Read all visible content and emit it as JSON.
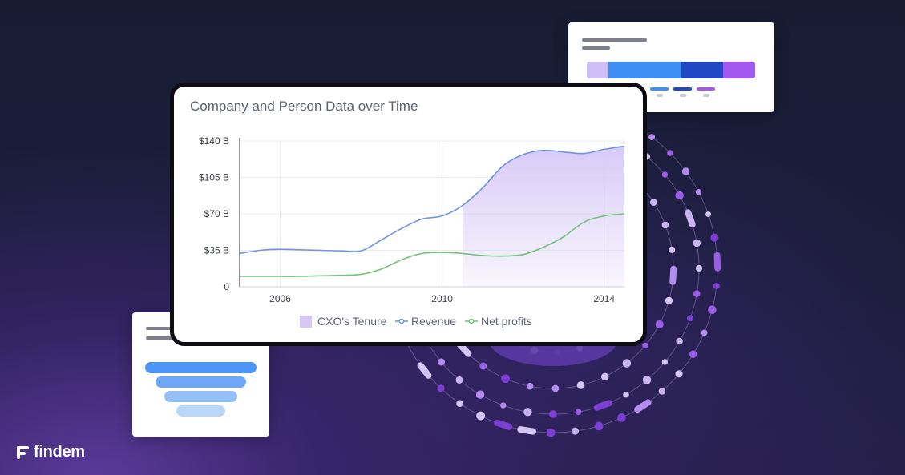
{
  "brand": {
    "name": "findem",
    "logo_icon": "findem-f-icon"
  },
  "colors": {
    "tenure": "#d6c7f7",
    "revenue": "#6f95e2",
    "net_profits": "#74c17b",
    "accent_purple": "#9b5de5"
  },
  "chart_data": {
    "type": "line",
    "title": "Company and Person Data over Time",
    "x": [
      2005.0,
      2005.5,
      2006.0,
      2006.5,
      2007.0,
      2007.5,
      2008.0,
      2008.5,
      2009.0,
      2009.5,
      2010.0,
      2010.5,
      2011.0,
      2011.5,
      2012.0,
      2012.5,
      2013.0,
      2013.5,
      2014.0,
      2014.5
    ],
    "xticks": [
      2006,
      2010,
      2014
    ],
    "xlim": [
      2005.0,
      2014.5
    ],
    "yticks": [
      "0",
      "$35 B",
      "$70 B",
      "$105 B",
      "$140 B"
    ],
    "ytick_values": [
      0,
      35,
      70,
      105,
      140
    ],
    "ylim": [
      0,
      140
    ],
    "ylabel": "",
    "xlabel": "",
    "grid": "horizontal and vertical",
    "legend_position": "bottom",
    "series": [
      {
        "name": "Revenue",
        "values": [
          32,
          35,
          36,
          35.5,
          35,
          34.5,
          34.5,
          45,
          56,
          65,
          68,
          78,
          95,
          116,
          127,
          131,
          129.5,
          128,
          132,
          135
        ]
      },
      {
        "name": "Net profits",
        "values": [
          10,
          10,
          10,
          10,
          10.5,
          11,
          12,
          17,
          26,
          32,
          33,
          32,
          30,
          29.5,
          31,
          38,
          48,
          62,
          68,
          70
        ]
      }
    ],
    "shaded_region": {
      "name": "CXO's Tenure",
      "x_start": 2010.5,
      "x_end": 2014.5,
      "follows_series": "Revenue"
    },
    "legend": [
      "CXO's Tenure",
      "Revenue",
      "Net profits"
    ]
  },
  "side_cards": {
    "top_right": {
      "bar_segments": [
        {
          "color": "#cdbef7",
          "value": 0.13
        },
        {
          "color": "#3d8ff5",
          "value": 0.43
        },
        {
          "color": "#2147c4",
          "value": 0.25
        },
        {
          "color": "#a458f0",
          "value": 0.19
        }
      ],
      "legend_colors": [
        "#3d8ff5",
        "#2147c4",
        "#a458f0"
      ]
    },
    "bottom_left": {
      "funnel_colors": [
        "#4c94f5",
        "#6fa7f6",
        "#94c0f8",
        "#bad6fa"
      ],
      "funnel_widths": [
        1.0,
        0.81,
        0.65,
        0.44
      ]
    }
  }
}
